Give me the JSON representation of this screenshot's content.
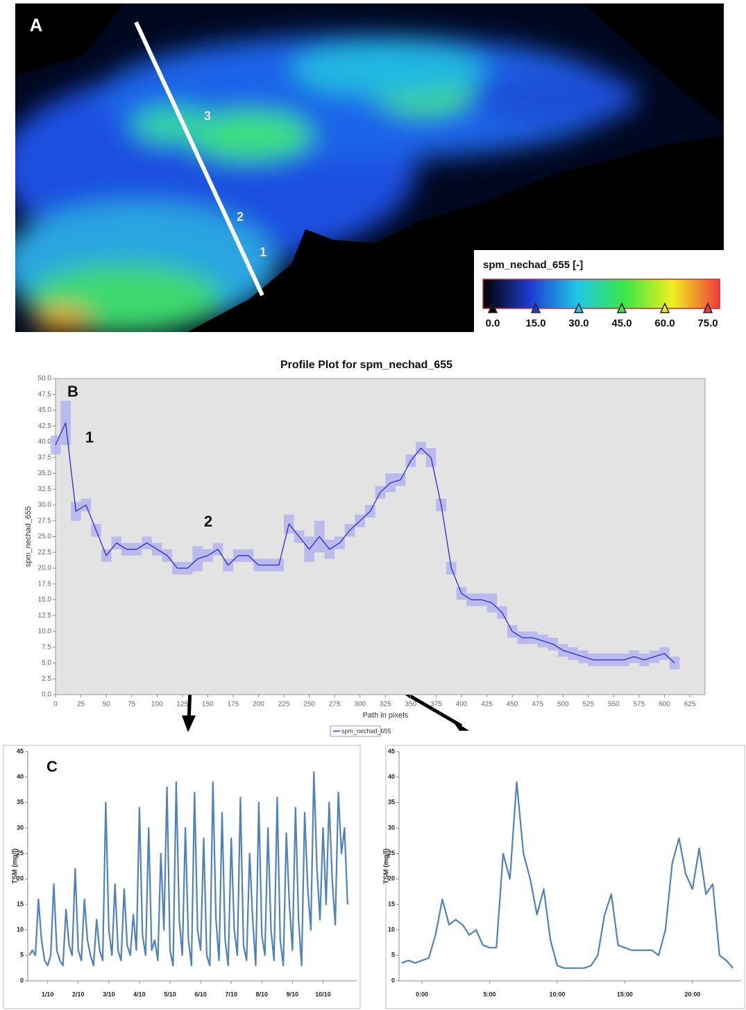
{
  "panel_a": {
    "label": "A",
    "transect_labels": [
      "3",
      "2",
      "1"
    ],
    "colorbar": {
      "title": "spm_nechad_655 [-]",
      "colormap": [
        "#000000",
        "#1e3cd2",
        "#1ec8e6",
        "#3ce646",
        "#f0f01e",
        "#f03c3c"
      ],
      "ticks": [
        {
          "value": 0,
          "label": "0.0"
        },
        {
          "value": 15,
          "label": "15.0"
        },
        {
          "value": 30,
          "label": "30.0"
        },
        {
          "value": 45,
          "label": "45.0"
        },
        {
          "value": 60,
          "label": "60.0"
        },
        {
          "value": 75,
          "label": "75.0"
        }
      ]
    }
  },
  "chart_data": [
    {
      "type": "line",
      "title": "Profile Plot for spm_nechad_655",
      "xlabel": "Path in pixels",
      "ylabel": "spm_nechad_655",
      "annotations": [
        "B",
        "1",
        "2"
      ],
      "legend": "bottom",
      "background": "#e3e3e3",
      "band_color": "#a8a8f0",
      "x": [
        0,
        10,
        20,
        30,
        40,
        50,
        60,
        70,
        80,
        90,
        100,
        110,
        120,
        130,
        140,
        150,
        160,
        170,
        180,
        190,
        200,
        210,
        220,
        230,
        240,
        250,
        260,
        270,
        280,
        290,
        300,
        310,
        320,
        330,
        340,
        350,
        360,
        370,
        380,
        390,
        400,
        410,
        420,
        430,
        440,
        450,
        460,
        470,
        480,
        490,
        500,
        510,
        520,
        530,
        540,
        550,
        560,
        570,
        580,
        590,
        600,
        610
      ],
      "series": [
        {
          "name": "spm_nechad_655",
          "color": "#2a2ad4",
          "values": [
            39.5,
            43,
            29,
            30,
            26,
            22,
            24,
            23,
            23,
            24,
            23,
            22,
            20,
            20,
            21.5,
            22,
            23,
            20.5,
            22,
            22,
            20.5,
            20.5,
            20.5,
            27,
            25,
            23,
            25,
            23,
            24,
            26,
            27.5,
            29,
            32,
            33.5,
            34,
            37,
            39,
            37.5,
            30,
            20,
            16,
            15,
            15,
            14.5,
            13,
            10,
            9,
            9,
            8.5,
            8,
            7,
            6.5,
            6,
            5.5,
            5.5,
            5.5,
            5.5,
            6,
            5.5,
            6,
            6.5,
            5
          ],
          "errors": [
            1.5,
            3.5,
            1.5,
            1,
            1,
            1,
            1,
            1,
            1,
            1,
            1,
            1,
            1,
            1,
            2,
            1,
            1,
            1,
            1,
            1,
            1,
            1,
            1,
            1.5,
            1,
            2,
            2.5,
            1.5,
            1,
            1,
            1,
            1,
            1,
            1.5,
            1,
            1,
            1,
            1.5,
            1,
            1,
            1,
            1,
            1,
            1.5,
            1,
            1,
            1,
            1,
            1,
            1,
            1,
            1,
            1,
            1,
            1,
            1,
            1,
            1,
            1,
            1,
            1,
            1
          ]
        }
      ],
      "xlim": [
        0,
        640
      ],
      "ylim": [
        0,
        50
      ],
      "xticks": [
        0,
        25,
        50,
        75,
        100,
        125,
        150,
        175,
        200,
        225,
        250,
        275,
        300,
        325,
        350,
        375,
        400,
        425,
        450,
        475,
        500,
        525,
        550,
        575,
        600,
        625
      ],
      "yticks": [
        {
          "value": 0,
          "label": "0.0"
        },
        {
          "value": 2.5,
          "label": "2.5"
        },
        {
          "value": 5,
          "label": "5.0"
        },
        {
          "value": 7.5,
          "label": "7.5"
        },
        {
          "value": 10,
          "label": "10.0"
        },
        {
          "value": 12.5,
          "label": "12.5"
        },
        {
          "value": 15,
          "label": "15.0"
        },
        {
          "value": 17.5,
          "label": "17.5"
        },
        {
          "value": 20,
          "label": "20.0"
        },
        {
          "value": 22.5,
          "label": "22.5"
        },
        {
          "value": 25,
          "label": "25.0"
        },
        {
          "value": 27.5,
          "label": "27.5"
        },
        {
          "value": 30,
          "label": "30.0"
        },
        {
          "value": 32.5,
          "label": "32.5"
        },
        {
          "value": 35,
          "label": "35.0"
        },
        {
          "value": 37.5,
          "label": "37.5"
        },
        {
          "value": 40,
          "label": "40.0"
        },
        {
          "value": 42.5,
          "label": "42.5"
        },
        {
          "value": 45,
          "label": "45.0"
        },
        {
          "value": 47.5,
          "label": "47.5"
        },
        {
          "value": 50,
          "label": "50.0"
        }
      ]
    },
    {
      "type": "line",
      "annotations": [
        "C"
      ],
      "ylabel": "TSM (mg/l)",
      "x": [
        0.4,
        0.5,
        0.6,
        0.7,
        0.8,
        0.9,
        1.0,
        1.1,
        1.2,
        1.3,
        1.4,
        1.5,
        1.6,
        1.7,
        1.8,
        1.9,
        2.0,
        2.1,
        2.2,
        2.3,
        2.4,
        2.5,
        2.6,
        2.7,
        2.8,
        2.9,
        3.0,
        3.1,
        3.2,
        3.3,
        3.4,
        3.5,
        3.6,
        3.7,
        3.8,
        3.9,
        4.0,
        4.1,
        4.2,
        4.3,
        4.4,
        4.5,
        4.6,
        4.7,
        4.8,
        4.9,
        5.0,
        5.1,
        5.2,
        5.3,
        5.4,
        5.5,
        5.6,
        5.7,
        5.8,
        5.9,
        6.0,
        6.1,
        6.2,
        6.3,
        6.4,
        6.5,
        6.6,
        6.7,
        6.8,
        6.9,
        7.0,
        7.1,
        7.2,
        7.3,
        7.4,
        7.5,
        7.6,
        7.7,
        7.8,
        7.9,
        8.0,
        8.1,
        8.2,
        8.3,
        8.4,
        8.5,
        8.6,
        8.7,
        8.8,
        8.9,
        9.0,
        9.1,
        9.2,
        9.3,
        9.4,
        9.5,
        9.6,
        9.7,
        9.8,
        9.9,
        10.0,
        10.1,
        10.2,
        10.3,
        10.4,
        10.5,
        10.6,
        10.7,
        10.8
      ],
      "series": [
        {
          "color": "#4f81bd",
          "values": [
            5,
            6,
            5,
            16,
            8,
            4,
            3,
            5,
            19,
            6,
            4,
            3,
            14,
            7,
            5,
            22,
            6,
            4,
            16,
            8,
            5,
            3,
            12,
            6,
            4,
            35,
            10,
            5,
            19,
            6,
            4,
            18,
            7,
            5,
            13,
            6,
            34,
            9,
            5,
            30,
            6,
            8,
            4,
            25,
            10,
            38,
            6,
            3,
            39,
            12,
            5,
            30,
            8,
            3,
            37,
            10,
            6,
            28,
            5,
            3,
            39,
            12,
            4,
            33,
            8,
            3,
            28,
            10,
            5,
            36,
            7,
            4,
            25,
            12,
            3,
            35,
            9,
            5,
            30,
            10,
            4,
            36,
            8,
            3,
            29,
            15,
            6,
            34,
            12,
            3,
            33,
            18,
            10,
            41,
            22,
            12,
            30,
            15,
            35,
            20,
            11,
            37,
            25,
            30,
            15
          ]
        }
      ],
      "xlim": [
        0.35,
        11.1
      ],
      "ylim": [
        0,
        45
      ],
      "xticks": [
        {
          "value": 1,
          "label": "1/10"
        },
        {
          "value": 2,
          "label": "2/10"
        },
        {
          "value": 3,
          "label": "3/10"
        },
        {
          "value": 4,
          "label": "4/10"
        },
        {
          "value": 5,
          "label": "5/10"
        },
        {
          "value": 6,
          "label": "6/10"
        },
        {
          "value": 7,
          "label": "7/10"
        },
        {
          "value": 8,
          "label": "8/10"
        },
        {
          "value": 9,
          "label": "9/10"
        },
        {
          "value": 10,
          "label": "10/10"
        }
      ],
      "yticks": [
        0,
        5,
        10,
        15,
        20,
        25,
        30,
        35,
        40,
        45
      ]
    },
    {
      "type": "line",
      "ylabel": "TSM (mg/l)",
      "x": [
        -1.5,
        -1,
        -0.5,
        0,
        0.5,
        1,
        1.5,
        2,
        2.5,
        3,
        3.5,
        4,
        4.5,
        5,
        5.5,
        6,
        6.5,
        7,
        7.5,
        8,
        8.5,
        9,
        9.5,
        10,
        10.5,
        11,
        11.5,
        12,
        12.5,
        13,
        13.5,
        14,
        14.5,
        15,
        15.5,
        16,
        16.5,
        17,
        17.5,
        18,
        18.5,
        19,
        19.5,
        20,
        20.5,
        21,
        21.5,
        22,
        22.5,
        23
      ],
      "series": [
        {
          "color": "#4f81bd",
          "values": [
            3.5,
            4,
            3.5,
            4,
            4.5,
            9,
            16,
            11,
            12,
            11,
            9,
            10,
            7,
            6.5,
            6.5,
            25,
            20,
            39,
            25,
            20,
            13,
            18,
            8,
            3,
            2.5,
            2.5,
            2.5,
            2.5,
            3,
            5,
            13,
            17,
            7,
            6.5,
            6,
            6,
            6,
            6,
            5,
            10,
            23,
            28,
            21,
            18,
            26,
            17,
            19,
            5,
            4,
            2.5
          ]
        }
      ],
      "xlim": [
        -1.7,
        23.6
      ],
      "ylim": [
        0,
        45
      ],
      "xticks": [
        {
          "value": 0,
          "label": "0:00"
        },
        {
          "value": 5,
          "label": "5:00"
        },
        {
          "value": 10,
          "label": "10:00"
        },
        {
          "value": 15,
          "label": "15:00"
        },
        {
          "value": 20,
          "label": "20:00"
        }
      ],
      "yticks": [
        0,
        5,
        10,
        15,
        20,
        25,
        30,
        35,
        40,
        45
      ]
    }
  ]
}
